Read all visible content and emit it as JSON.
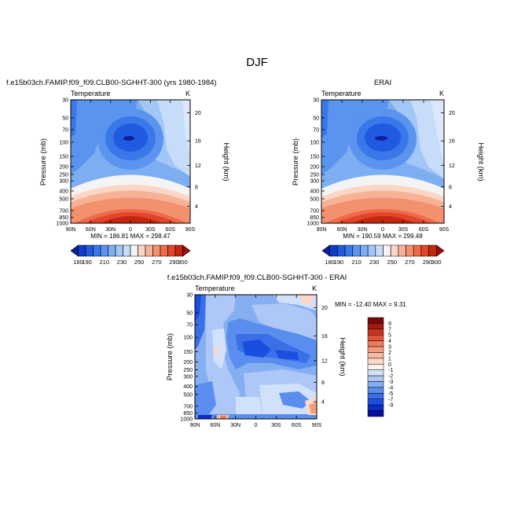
{
  "figure": {
    "title": "DJF",
    "colors": {
      "temp_palette": [
        "#0c1f9c",
        "#0f3cc8",
        "#1f5ae0",
        "#3a78ea",
        "#5a94ee",
        "#7eaef2",
        "#a2c6f6",
        "#c6dcf9",
        "#f4f4f4",
        "#fbd6c4",
        "#f7b296",
        "#f3906e",
        "#ee6a48",
        "#e2452a",
        "#c4260f",
        "#99120a"
      ],
      "diff_palette": [
        "#08109a",
        "#0c2dc4",
        "#1a4ee0",
        "#3a6fe8",
        "#5a8eee",
        "#86aef2",
        "#adc8f6",
        "#d2e1fa",
        "#f8f4f0",
        "#fbd8c8",
        "#f7bba4",
        "#f39c80",
        "#ee7a5a",
        "#e3553a",
        "#c8331f",
        "#a01a10",
        "#7a0808"
      ]
    }
  },
  "chart_data": [
    {
      "type": "heatmap",
      "title": "f.e15b03ch.FAMIP.f09_f09.CLB00-SGHHT-300 (yrs 1980-1984)",
      "variable_label": "Temperature",
      "units": "K",
      "ylabel": "Pressure (mb)",
      "ylabel_right": "Height (km)",
      "x_ticks": [
        "90N",
        "60N",
        "30N",
        "0",
        "30S",
        "60S",
        "90S"
      ],
      "y_ticks": [
        "30",
        "50",
        "70",
        "100",
        "150",
        "200",
        "250",
        "300",
        "400",
        "500",
        "700",
        "850",
        "1000"
      ],
      "y_ticks_right": [
        "20",
        "16",
        "12",
        "8",
        "4"
      ],
      "stats": "MIN = 186.81   MAX = 298.47",
      "min": 186.81,
      "max": 298.47,
      "colorbar_levels": [
        "180",
        "190",
        "200",
        "210",
        "220",
        "230",
        "240",
        "250",
        "260",
        "270",
        "280",
        "290",
        "300"
      ],
      "colorbar_labels": [
        "180",
        "190",
        "210",
        "230",
        "250",
        "270",
        "290",
        "300"
      ]
    },
    {
      "type": "heatmap",
      "title": "ERAI",
      "variable_label": "Temperature",
      "units": "K",
      "ylabel": "Pressure (mb)",
      "ylabel_right": "Height (km)",
      "x_ticks": [
        "90N",
        "60N",
        "30N",
        "0",
        "30S",
        "60S",
        "90S"
      ],
      "y_ticks": [
        "30",
        "50",
        "70",
        "100",
        "150",
        "200",
        "250",
        "300",
        "400",
        "500",
        "700",
        "850",
        "1000"
      ],
      "y_ticks_right": [
        "20",
        "16",
        "12",
        "8",
        "4"
      ],
      "stats": "MIN = 190.59   MAX = 299.48",
      "min": 190.59,
      "max": 299.48,
      "colorbar_levels": [
        "180",
        "190",
        "200",
        "210",
        "220",
        "230",
        "240",
        "250",
        "260",
        "270",
        "280",
        "290",
        "300"
      ],
      "colorbar_labels": [
        "180",
        "190",
        "210",
        "230",
        "250",
        "270",
        "290",
        "300"
      ]
    },
    {
      "type": "heatmap",
      "title": "f.e15b03ch.FAMIP.f09_f09.CLB00-SGHHT-300 - ERAI",
      "variable_label": "Temperature",
      "units": "K",
      "ylabel": "Pressure (mb)",
      "ylabel_right": "Height (km)",
      "x_ticks": [
        "90N",
        "60N",
        "30N",
        "0",
        "30S",
        "60S",
        "90S"
      ],
      "y_ticks": [
        "30",
        "50",
        "70",
        "100",
        "150",
        "200",
        "250",
        "300",
        "400",
        "500",
        "700",
        "850",
        "1000"
      ],
      "y_ticks_right": [
        "20",
        "16",
        "12",
        "8",
        "4"
      ],
      "stats": "MIN = -12.40   MAX =   9.31",
      "min": -12.4,
      "max": 9.31,
      "colorbar_labels": [
        "9",
        "7",
        "5",
        "4",
        "3",
        "2",
        "1",
        "0",
        "-1",
        "-2",
        "-3",
        "-4",
        "-5",
        "-7",
        "-9"
      ]
    }
  ]
}
